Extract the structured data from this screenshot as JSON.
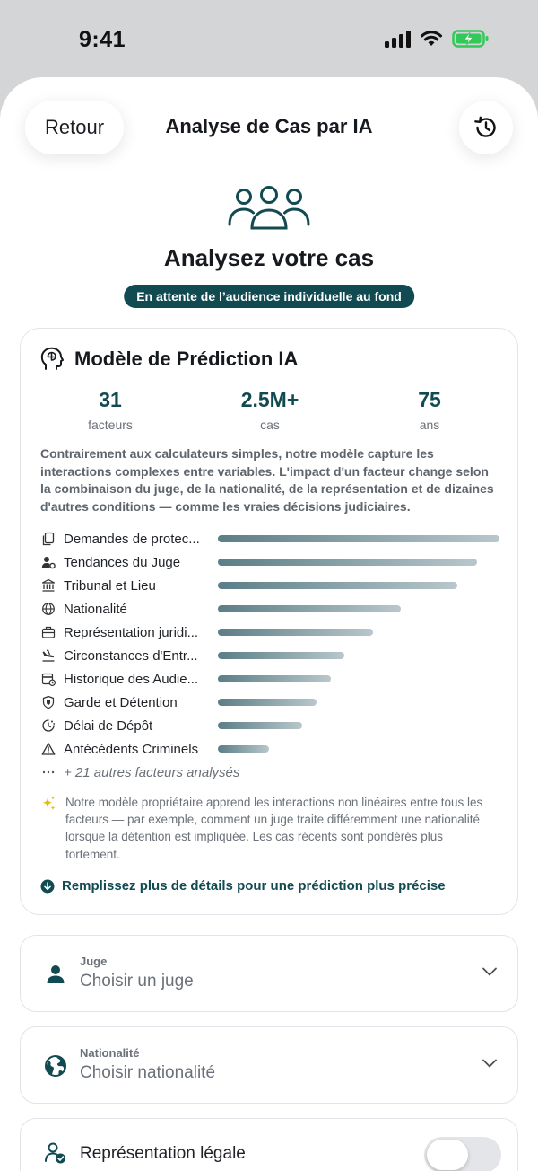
{
  "status_bar": {
    "time": "9:41"
  },
  "nav": {
    "back_label": "Retour",
    "title": "Analyse de Cas par IA",
    "history_icon": "history-icon"
  },
  "hero": {
    "icon": "users-group-icon",
    "title": "Analysez votre cas",
    "status": "En attente de l’audience individuelle au fond"
  },
  "card": {
    "title": "Modèle de Prédiction IA",
    "icon": "brain-head-icon",
    "stats": [
      {
        "value": "31",
        "label": "facteurs"
      },
      {
        "value": "2.5M+",
        "label": "cas"
      },
      {
        "value": "75",
        "label": "ans"
      }
    ],
    "description": "Contrairement aux calculateurs simples, notre modèle capture les interactions complexes entre variables. L'impact d'un facteur change selon la combinaison du juge, de la nationalité, de la représentation et de dizaines d'autres conditions — comme les vraies décisions judiciaires.",
    "factors": [
      {
        "label": "Demandes de protec...",
        "weight": 1.0,
        "icon": "document-copy-icon"
      },
      {
        "label": "Tendances du Juge",
        "weight": 0.92,
        "icon": "person-gear-icon"
      },
      {
        "label": "Tribunal et Lieu",
        "weight": 0.85,
        "icon": "courthouse-icon"
      },
      {
        "label": "Nationalité",
        "weight": 0.65,
        "icon": "globe-icon"
      },
      {
        "label": "Représentation juridi...",
        "weight": 0.55,
        "icon": "briefcase-icon"
      },
      {
        "label": "Circonstances d'Entr...",
        "weight": 0.45,
        "icon": "plane-arrival-icon"
      },
      {
        "label": "Historique des Audie...",
        "weight": 0.4,
        "icon": "calendar-clock-icon"
      },
      {
        "label": "Garde et Détention",
        "weight": 0.35,
        "icon": "shield-icon"
      },
      {
        "label": "Délai de Dépôt",
        "weight": 0.3,
        "icon": "clock-icon"
      },
      {
        "label": "Antécédents Criminels",
        "weight": 0.18,
        "icon": "warning-icon"
      }
    ],
    "more_label": "+ 21 autres facteurs analysés",
    "note": "Notre modèle propriétaire apprend les interactions non linéaires entre tous les facteurs — par exemple, comment un juge traite différemment une nationalité lorsque la détention est impliquée. Les cas récents sont pondérés plus fortement.",
    "cta": "Remplissez plus de détails pour une prédiction plus précise"
  },
  "fields": {
    "judge": {
      "label": "Juge",
      "placeholder": "Choisir un juge"
    },
    "nationality": {
      "label": "Nationalité",
      "placeholder": "Choisir nationalité"
    },
    "representation": {
      "label": "Représentation légale",
      "enabled": false
    }
  },
  "colors": {
    "accent": "#124a52",
    "bar_start": "#5b7e86",
    "bar_end": "#b8c7cb",
    "battery": "#34c759"
  }
}
